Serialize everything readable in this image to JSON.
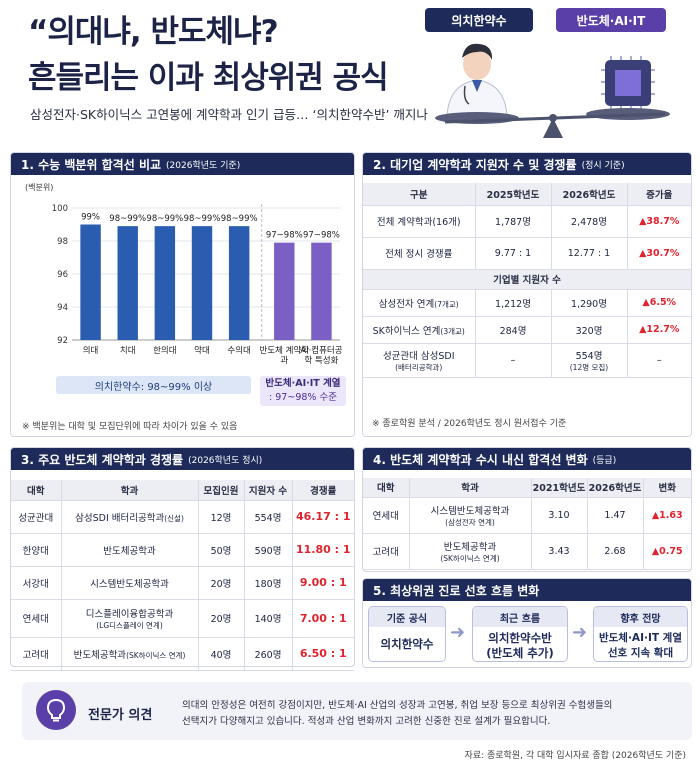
{
  "title": {
    "line1": "“의대냐, 반도체냐?",
    "line2": "흔들리는 이과 최상위권 공식"
  },
  "subtitle": "삼성전자·SK하이닉스 고연봉에 계약학과 인기 급등… ‘의치한약수반’ 깨지나",
  "tags": {
    "medical": "의치한약수",
    "semi": "반도체·AI·IT"
  },
  "colors": {
    "navy": "#1d2a5a",
    "bar_blue": "#2a5cb0",
    "bar_purple": "#7b5fc4",
    "red": "#e0242f"
  },
  "section1": {
    "title": "1. 수능 백분위 합격선 비교",
    "note": "(2026학년도 기준)",
    "footnote": "※ 백분위는 대학 및 모집단위에 따라 차이가 있을 수 있음",
    "legend_medical": "의치한약수: 98~99% 이상",
    "legend_semi_line1": "반도체·AI·IT 계열",
    "legend_semi_line2": ": 97~98% 수준",
    "chart_data": {
      "type": "bar",
      "ylabel": "(백분위)",
      "ylim": [
        92,
        100
      ],
      "yticks": [
        "100",
        "98",
        "96",
        "94",
        "92"
      ],
      "categories": [
        "의대",
        "치대",
        "한의대",
        "약대",
        "수의대",
        "반도체 계약학과",
        "AI·컴퓨터공학 특성화"
      ],
      "values": [
        99,
        98.9,
        98.9,
        98.9,
        98.9,
        97.9,
        97.9
      ],
      "labels": [
        "99%",
        "98~99%",
        "98~99%",
        "98~99%",
        "98~99%",
        "97~98%",
        "97~98%"
      ],
      "groups": [
        "medical",
        "medical",
        "medical",
        "medical",
        "medical",
        "semi",
        "semi"
      ]
    }
  },
  "section2": {
    "title": "2. 대기업 계약학과 지원자 수 및 경쟁률",
    "note": "(정시 기준)",
    "headers": [
      "구분",
      "2025학년도",
      "2026학년도",
      "증가율"
    ],
    "rows": [
      {
        "label": "전체 계약학과(16개)",
        "y2025": "1,787명",
        "y2026": "2,478명",
        "rate": "▲38.7%"
      },
      {
        "label": "전체 정시 경쟁률",
        "y2025": "9.77 : 1",
        "y2026": "12.77 : 1",
        "rate": "▲30.7%"
      }
    ],
    "subheader": "기업별 지원자 수",
    "rows2": [
      {
        "label": "삼성전자 연계",
        "small": "(7개교)",
        "y2025": "1,212명",
        "y2026": "1,290명",
        "rate": "▲6.5%"
      },
      {
        "label": "SK하이닉스 연계",
        "small": "(3개교)",
        "y2025": "284명",
        "y2026": "320명",
        "rate": "▲12.7%"
      },
      {
        "label": "성균관대 삼성SDI",
        "small": "(배터리공학과)",
        "y2025": "–",
        "y2026": "554명",
        "y2026_small": "(12명 모집)",
        "rate": "–"
      }
    ],
    "footnote": "※ 종로학원 분석 / 2026학년도 정시 원서접수 기준"
  },
  "section3": {
    "title": "3. 주요 반도체 계약학과 경쟁률",
    "note": "(2026학년도 정시)",
    "headers": [
      "대학",
      "학과",
      "모집인원",
      "지원자 수",
      "경쟁률"
    ],
    "rows": [
      {
        "univ": "성균관대",
        "dept": "삼성SDI 배터리공학과",
        "dept_small": "(신설)",
        "dept2": "",
        "quota": "12명",
        "applicants": "554명",
        "ratio": "46.17 : 1"
      },
      {
        "univ": "한양대",
        "dept": "반도체공학과",
        "dept_small": "",
        "dept2": "",
        "quota": "50명",
        "applicants": "590명",
        "ratio": "11.80 : 1"
      },
      {
        "univ": "서강대",
        "dept": "시스템반도체공학과",
        "dept_small": "",
        "dept2": "",
        "quota": "20명",
        "applicants": "180명",
        "ratio": "9.00 : 1"
      },
      {
        "univ": "연세대",
        "dept": "디스플레이융합공학과",
        "dept_small": "",
        "dept2": "(LG디스플레이 연계)",
        "quota": "20명",
        "applicants": "140명",
        "ratio": "7.00 : 1"
      },
      {
        "univ": "고려대",
        "dept": "반도체공학과",
        "dept_small": "(SK하이닉스 연계)",
        "dept2": "",
        "quota": "40명",
        "applicants": "260명",
        "ratio": "6.50 : 1"
      }
    ]
  },
  "section4": {
    "title": "4. 반도체 계약학과 수시 내신 합격선 변화",
    "note": "(등급)",
    "headers": [
      "대학",
      "학과",
      "2021학년도",
      "2026학년도",
      "변화"
    ],
    "rows": [
      {
        "univ": "연세대",
        "dept": "시스템반도체공학과",
        "dept2": "(삼성전자 연계)",
        "y2021": "3.10",
        "y2026": "1.47",
        "change": "▲1.63"
      },
      {
        "univ": "고려대",
        "dept": "반도체공학과",
        "dept2": "(SK하이닉스 연계)",
        "y2021": "3.43",
        "y2026": "2.68",
        "change": "▲0.75"
      }
    ]
  },
  "section5": {
    "title": "5. 최상위권 진로 선호 흐름 변화",
    "steps": [
      {
        "head": "기준 공식",
        "line1": "의치한약수",
        "line2": ""
      },
      {
        "head": "최근 흐름",
        "line1": "의치한약수반",
        "line2": "(반도체 추가)"
      },
      {
        "head": "향후 전망",
        "line1": "반도체·AI·IT 계열",
        "line2": "선호 지속 확대"
      }
    ]
  },
  "expert": {
    "label": "전문가 의견",
    "line1": "의대의 안정성은 여전히 강점이지만, 반도체·AI 산업의 성장과 고연봉, 취업 보장 등으로 최상위권 수험생들의",
    "line2": "선택지가 다양해지고 있습니다. 적성과 산업 변화까지 고려한 신중한 진로 설계가 필요합니다."
  },
  "source": "자료: 종로학원, 각 대학 입시자료 종합 (2026학년도 기준)"
}
